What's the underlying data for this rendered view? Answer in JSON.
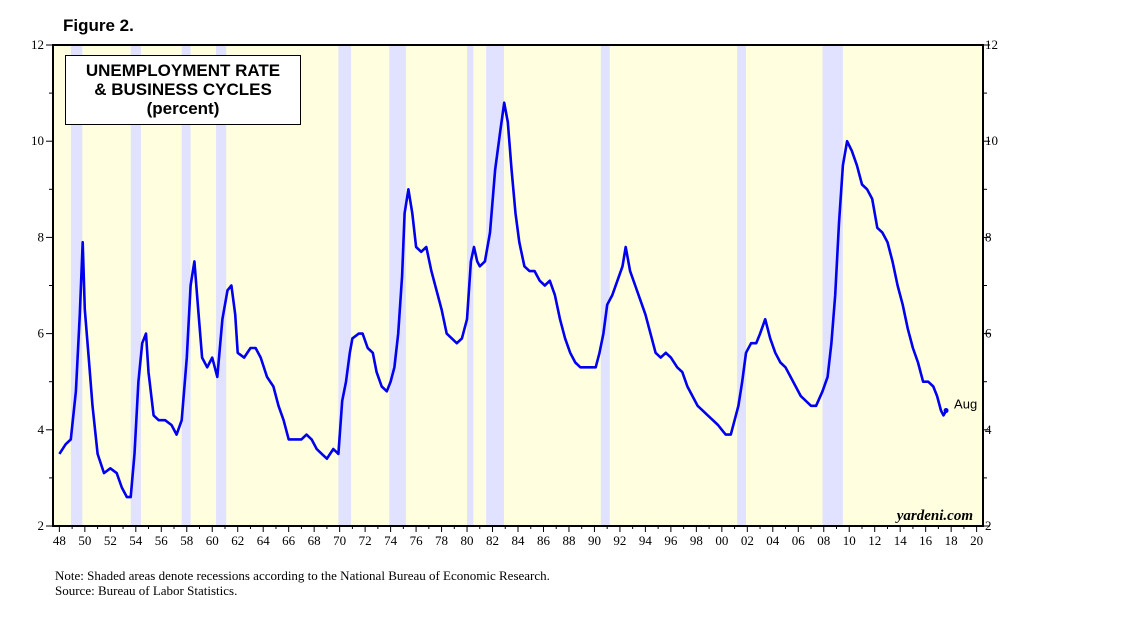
{
  "figure_label": "Figure 2.",
  "title_lines": [
    "UNEMPLOYMENT RATE",
    "& BUSINESS CYCLES",
    "(percent)"
  ],
  "end_label": "Aug",
  "watermark": "yardeni.com",
  "notes": [
    "Note: Shaded areas denote recessions according to the National Bureau of Economic Research.",
    "Source: Bureau of Labor Statistics."
  ],
  "colors": {
    "line": "#0000ee",
    "background": "#ffffe0",
    "recession": "#e0e2ff"
  },
  "chart_data": {
    "type": "line",
    "title": "UNEMPLOYMENT RATE & BUSINESS CYCLES (percent)",
    "xlabel": "",
    "ylabel": "percent",
    "xlim": [
      1947.5,
      2020.5
    ],
    "ylim": [
      2,
      12
    ],
    "x_tick_labels": [
      "48",
      "50",
      "52",
      "54",
      "56",
      "58",
      "60",
      "62",
      "64",
      "66",
      "68",
      "70",
      "72",
      "74",
      "76",
      "78",
      "80",
      "82",
      "84",
      "86",
      "88",
      "90",
      "92",
      "94",
      "96",
      "98",
      "00",
      "02",
      "04",
      "06",
      "08",
      "10",
      "12",
      "14",
      "16",
      "18",
      "20"
    ],
    "y_tick_labels": [
      "2",
      "4",
      "6",
      "8",
      "10",
      "12"
    ],
    "recessions": [
      [
        1948.9,
        1949.8
      ],
      [
        1953.6,
        1954.4
      ],
      [
        1957.6,
        1958.3
      ],
      [
        1960.3,
        1961.1
      ],
      [
        1969.9,
        1970.9
      ],
      [
        1973.9,
        1975.2
      ],
      [
        1980.0,
        1980.5
      ],
      [
        1981.5,
        1982.9
      ],
      [
        1990.5,
        1991.2
      ],
      [
        2001.2,
        2001.9
      ],
      [
        2007.9,
        2009.5
      ]
    ],
    "series": [
      {
        "name": "Unemployment rate",
        "points": [
          [
            1948.0,
            3.5
          ],
          [
            1948.5,
            3.7
          ],
          [
            1948.9,
            3.8
          ],
          [
            1949.3,
            4.8
          ],
          [
            1949.6,
            6.4
          ],
          [
            1949.83,
            7.9
          ],
          [
            1950.0,
            6.5
          ],
          [
            1950.3,
            5.5
          ],
          [
            1950.6,
            4.5
          ],
          [
            1951.0,
            3.5
          ],
          [
            1951.5,
            3.1
          ],
          [
            1952.0,
            3.2
          ],
          [
            1952.5,
            3.1
          ],
          [
            1952.9,
            2.8
          ],
          [
            1953.3,
            2.6
          ],
          [
            1953.6,
            2.6
          ],
          [
            1953.9,
            3.5
          ],
          [
            1954.2,
            5.0
          ],
          [
            1954.5,
            5.8
          ],
          [
            1954.8,
            6.0
          ],
          [
            1955.0,
            5.2
          ],
          [
            1955.4,
            4.3
          ],
          [
            1955.8,
            4.2
          ],
          [
            1956.3,
            4.2
          ],
          [
            1956.8,
            4.1
          ],
          [
            1957.2,
            3.9
          ],
          [
            1957.6,
            4.2
          ],
          [
            1958.0,
            5.5
          ],
          [
            1958.3,
            7.0
          ],
          [
            1958.6,
            7.5
          ],
          [
            1958.9,
            6.5
          ],
          [
            1959.2,
            5.5
          ],
          [
            1959.6,
            5.3
          ],
          [
            1960.0,
            5.5
          ],
          [
            1960.4,
            5.1
          ],
          [
            1960.8,
            6.3
          ],
          [
            1961.2,
            6.9
          ],
          [
            1961.5,
            7.0
          ],
          [
            1961.8,
            6.4
          ],
          [
            1962.0,
            5.6
          ],
          [
            1962.5,
            5.5
          ],
          [
            1963.0,
            5.7
          ],
          [
            1963.4,
            5.7
          ],
          [
            1963.8,
            5.5
          ],
          [
            1964.3,
            5.1
          ],
          [
            1964.8,
            4.9
          ],
          [
            1965.2,
            4.5
          ],
          [
            1965.6,
            4.2
          ],
          [
            1966.0,
            3.8
          ],
          [
            1966.5,
            3.8
          ],
          [
            1967.0,
            3.8
          ],
          [
            1967.4,
            3.9
          ],
          [
            1967.8,
            3.8
          ],
          [
            1968.2,
            3.6
          ],
          [
            1968.6,
            3.5
          ],
          [
            1969.0,
            3.4
          ],
          [
            1969.5,
            3.6
          ],
          [
            1969.9,
            3.5
          ],
          [
            1970.2,
            4.6
          ],
          [
            1970.5,
            5.0
          ],
          [
            1970.8,
            5.6
          ],
          [
            1971.0,
            5.9
          ],
          [
            1971.5,
            6.0
          ],
          [
            1971.8,
            6.0
          ],
          [
            1972.2,
            5.7
          ],
          [
            1972.6,
            5.6
          ],
          [
            1972.9,
            5.2
          ],
          [
            1973.3,
            4.9
          ],
          [
            1973.7,
            4.8
          ],
          [
            1974.0,
            5.0
          ],
          [
            1974.3,
            5.3
          ],
          [
            1974.6,
            6.0
          ],
          [
            1974.9,
            7.2
          ],
          [
            1975.1,
            8.5
          ],
          [
            1975.4,
            9.0
          ],
          [
            1975.7,
            8.5
          ],
          [
            1976.0,
            7.8
          ],
          [
            1976.4,
            7.7
          ],
          [
            1976.8,
            7.8
          ],
          [
            1977.2,
            7.3
          ],
          [
            1977.6,
            6.9
          ],
          [
            1978.0,
            6.5
          ],
          [
            1978.4,
            6.0
          ],
          [
            1978.8,
            5.9
          ],
          [
            1979.2,
            5.8
          ],
          [
            1979.6,
            5.9
          ],
          [
            1980.0,
            6.3
          ],
          [
            1980.3,
            7.5
          ],
          [
            1980.55,
            7.8
          ],
          [
            1980.8,
            7.5
          ],
          [
            1981.0,
            7.4
          ],
          [
            1981.4,
            7.5
          ],
          [
            1981.8,
            8.1
          ],
          [
            1982.2,
            9.4
          ],
          [
            1982.6,
            10.2
          ],
          [
            1982.92,
            10.8
          ],
          [
            1983.2,
            10.4
          ],
          [
            1983.5,
            9.4
          ],
          [
            1983.8,
            8.5
          ],
          [
            1984.1,
            7.9
          ],
          [
            1984.5,
            7.4
          ],
          [
            1984.9,
            7.3
          ],
          [
            1985.3,
            7.3
          ],
          [
            1985.7,
            7.1
          ],
          [
            1986.1,
            7.0
          ],
          [
            1986.5,
            7.1
          ],
          [
            1986.9,
            6.8
          ],
          [
            1987.3,
            6.3
          ],
          [
            1987.7,
            5.9
          ],
          [
            1988.1,
            5.6
          ],
          [
            1988.5,
            5.4
          ],
          [
            1988.9,
            5.3
          ],
          [
            1989.3,
            5.3
          ],
          [
            1989.7,
            5.3
          ],
          [
            1990.1,
            5.3
          ],
          [
            1990.4,
            5.6
          ],
          [
            1990.7,
            6.0
          ],
          [
            1991.0,
            6.6
          ],
          [
            1991.4,
            6.8
          ],
          [
            1991.8,
            7.1
          ],
          [
            1992.2,
            7.4
          ],
          [
            1992.45,
            7.8
          ],
          [
            1992.8,
            7.3
          ],
          [
            1993.2,
            7.0
          ],
          [
            1993.6,
            6.7
          ],
          [
            1994.0,
            6.4
          ],
          [
            1994.4,
            6.0
          ],
          [
            1994.8,
            5.6
          ],
          [
            1995.2,
            5.5
          ],
          [
            1995.6,
            5.6
          ],
          [
            1996.0,
            5.5
          ],
          [
            1996.5,
            5.3
          ],
          [
            1996.9,
            5.2
          ],
          [
            1997.3,
            4.9
          ],
          [
            1997.7,
            4.7
          ],
          [
            1998.1,
            4.5
          ],
          [
            1998.5,
            4.4
          ],
          [
            1998.9,
            4.3
          ],
          [
            1999.3,
            4.2
          ],
          [
            1999.7,
            4.1
          ],
          [
            2000.0,
            4.0
          ],
          [
            2000.3,
            3.9
          ],
          [
            2000.7,
            3.9
          ],
          [
            2001.0,
            4.2
          ],
          [
            2001.3,
            4.5
          ],
          [
            2001.6,
            5.0
          ],
          [
            2001.9,
            5.6
          ],
          [
            2002.3,
            5.8
          ],
          [
            2002.7,
            5.8
          ],
          [
            2003.0,
            6.0
          ],
          [
            2003.4,
            6.3
          ],
          [
            2003.8,
            5.9
          ],
          [
            2004.2,
            5.6
          ],
          [
            2004.6,
            5.4
          ],
          [
            2005.0,
            5.3
          ],
          [
            2005.4,
            5.1
          ],
          [
            2005.8,
            4.9
          ],
          [
            2006.2,
            4.7
          ],
          [
            2006.6,
            4.6
          ],
          [
            2007.0,
            4.5
          ],
          [
            2007.4,
            4.5
          ],
          [
            2007.9,
            4.8
          ],
          [
            2008.3,
            5.1
          ],
          [
            2008.6,
            5.8
          ],
          [
            2008.9,
            6.8
          ],
          [
            2009.2,
            8.3
          ],
          [
            2009.5,
            9.5
          ],
          [
            2009.83,
            10.0
          ],
          [
            2010.2,
            9.8
          ],
          [
            2010.6,
            9.5
          ],
          [
            2011.0,
            9.1
          ],
          [
            2011.4,
            9.0
          ],
          [
            2011.8,
            8.8
          ],
          [
            2012.2,
            8.2
          ],
          [
            2012.6,
            8.1
          ],
          [
            2013.0,
            7.9
          ],
          [
            2013.4,
            7.5
          ],
          [
            2013.8,
            7.0
          ],
          [
            2014.2,
            6.6
          ],
          [
            2014.6,
            6.1
          ],
          [
            2015.0,
            5.7
          ],
          [
            2015.4,
            5.4
          ],
          [
            2015.8,
            5.0
          ],
          [
            2016.2,
            5.0
          ],
          [
            2016.6,
            4.9
          ],
          [
            2016.9,
            4.7
          ],
          [
            2017.2,
            4.4
          ],
          [
            2017.4,
            4.3
          ],
          [
            2017.6,
            4.4
          ]
        ]
      }
    ]
  }
}
